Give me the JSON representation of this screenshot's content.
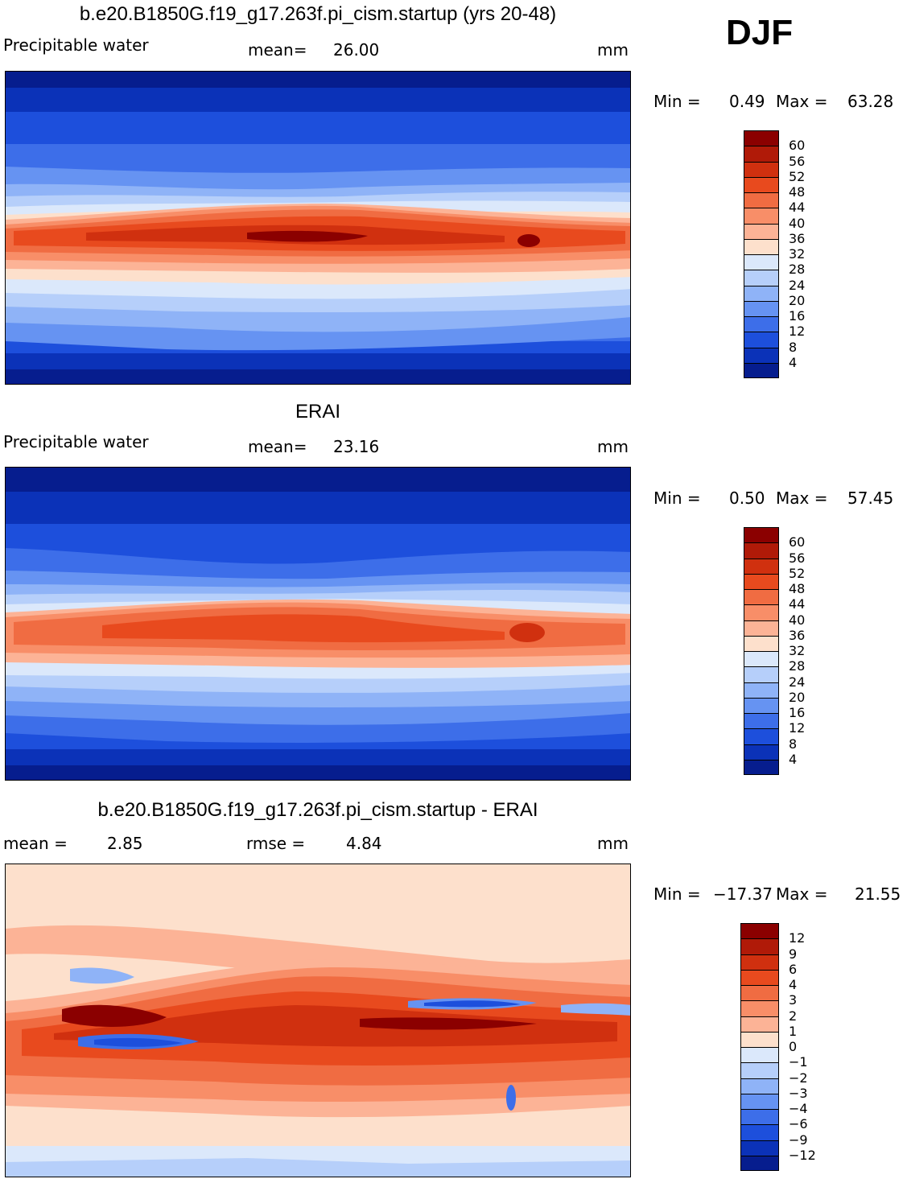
{
  "season": "DJF",
  "panels": [
    {
      "id": "model",
      "title": "b.e20.B1850G.f19_g17.263f.pi_cism.startup (yrs 20-48)",
      "left_label": "Precipitable water",
      "mid_label": "mean=",
      "mid_value": "26.00",
      "units": "mm",
      "min_label": "Min =",
      "min_value": "0.49",
      "max_label": "Max =",
      "max_value": "63.28",
      "colorbar_levels": [
        "60",
        "56",
        "52",
        "48",
        "44",
        "40",
        "36",
        "32",
        "28",
        "24",
        "20",
        "16",
        "12",
        "8",
        "4"
      ]
    },
    {
      "id": "obs",
      "title": "ERAI",
      "left_label": "Precipitable water",
      "mid_label": "mean=",
      "mid_value": "23.16",
      "units": "mm",
      "min_label": "Min =",
      "min_value": "0.50",
      "max_label": "Max =",
      "max_value": "57.45",
      "colorbar_levels": [
        "60",
        "56",
        "52",
        "48",
        "44",
        "40",
        "36",
        "32",
        "28",
        "24",
        "20",
        "16",
        "12",
        "8",
        "4"
      ]
    },
    {
      "id": "diff",
      "title": "b.e20.B1850G.f19_g17.263f.pi_cism.startup - ERAI",
      "left_label": "mean =",
      "left_value": "2.85",
      "mid_label": "rmse =",
      "mid_value": "4.84",
      "units": "mm",
      "min_label": "Min =",
      "min_value": "−17.37",
      "max_label": "Max =",
      "max_value": "21.55",
      "colorbar_levels": [
        "12",
        "9",
        "6",
        "4",
        "3",
        "2",
        "1",
        "0",
        "−1",
        "−2",
        "−3",
        "−4",
        "−6",
        "−9",
        "−12"
      ]
    }
  ],
  "colors": {
    "seq": [
      "#8b0000",
      "#b01a08",
      "#d0300f",
      "#e84a1e",
      "#f06c42",
      "#f88e68",
      "#fcb396",
      "#fde0cc",
      "#dbe8fb",
      "#b6cffa",
      "#8fb3f7",
      "#6693f2",
      "#3d6ee9",
      "#1d4fdc",
      "#0b32b8",
      "#061d8e"
    ],
    "diff": [
      "#8b0000",
      "#b01a08",
      "#d0300f",
      "#e84a1e",
      "#f06c42",
      "#f88e68",
      "#fcb396",
      "#fde0cc",
      "#dbe8fb",
      "#b6cffa",
      "#8fb3f7",
      "#6693f2",
      "#3d6ee9",
      "#1d4fdc",
      "#0b32b8",
      "#061d8e"
    ]
  }
}
